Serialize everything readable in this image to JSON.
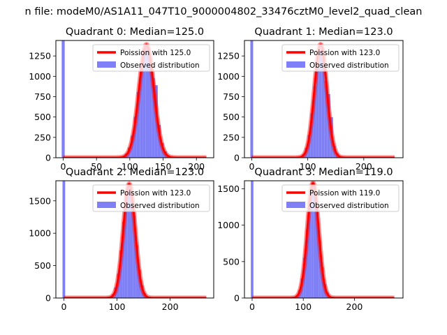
{
  "figure": {
    "suptitle": "n file: modeM0/AS1A11_047T10_9000004802_33476cztM0_level2_quad_clean"
  },
  "colors": {
    "hist": "#7f7ff7",
    "poisson": "#ff0000",
    "axis": "#000000"
  },
  "chart_data": [
    {
      "type": "bar",
      "title": "Quadrant 0: Median=125.0",
      "median": 125.0,
      "xlim": [
        -11,
        226
      ],
      "ylim": [
        0,
        1440
      ],
      "xticks": [
        0,
        50,
        100,
        150,
        200
      ],
      "yticks": [
        0,
        250,
        500,
        750,
        1000,
        1250
      ],
      "zero_bin": {
        "x": 0,
        "width": 4.5,
        "value": 1440
      },
      "hist_range": [
        70,
        160
      ],
      "bin_width": 4.5,
      "curve_range": [
        0,
        215
      ],
      "poisson_mean": 125.0,
      "poisson_peak": 1390,
      "hist_peak": 1390,
      "bumps": [
        {
          "x": 140,
          "extra": 260
        }
      ],
      "legend": {
        "line": "Poission with 125.0",
        "patch": "Observed distribution",
        "position": "upper right"
      }
    },
    {
      "type": "bar",
      "title": "Quadrant 1: Median=123.0",
      "median": 123.0,
      "xlim": [
        -13,
        270
      ],
      "ylim": [
        0,
        1440
      ],
      "xticks": [
        0,
        100,
        200
      ],
      "yticks": [
        0,
        250,
        500,
        750,
        1000,
        1250
      ],
      "zero_bin": {
        "x": 0,
        "width": 5,
        "value": 1440
      },
      "hist_range": [
        40,
        170
      ],
      "bin_width": 5,
      "curve_range": [
        0,
        255
      ],
      "poisson_mean": 123.0,
      "poisson_peak": 1390,
      "hist_peak": 1320,
      "bumps": [
        {
          "x": 140,
          "extra": 330
        }
      ],
      "legend": {
        "line": "Poission with 123.0",
        "patch": "Observed distribution",
        "position": "upper right"
      }
    },
    {
      "type": "bar",
      "title": "Quadrant 2: Median=123.0",
      "median": 123.0,
      "xlim": [
        -15,
        282
      ],
      "ylim": [
        0,
        1810
      ],
      "xticks": [
        0,
        100,
        200
      ],
      "yticks": [
        0,
        500,
        1000,
        1500
      ],
      "zero_bin": {
        "x": 0,
        "width": 5,
        "value": 1810
      },
      "hist_range": [
        90,
        160
      ],
      "bin_width": 5,
      "curve_range": [
        0,
        268
      ],
      "poisson_mean": 123.0,
      "poisson_peak": 1760,
      "hist_peak": 1770,
      "bumps": [],
      "legend": {
        "line": "Poission with 123.0",
        "patch": "Observed distribution",
        "position": "upper right"
      }
    },
    {
      "type": "bar",
      "title": "Quadrant 3: Median=119.0",
      "median": 119.0,
      "xlim": [
        -15,
        295
      ],
      "ylim": [
        0,
        1610
      ],
      "xticks": [
        0,
        100,
        200
      ],
      "yticks": [
        0,
        500,
        1000,
        1500
      ],
      "zero_bin": {
        "x": 0,
        "width": 5,
        "value": 1610
      },
      "hist_range": [
        70,
        160
      ],
      "bin_width": 5,
      "curve_range": [
        0,
        278
      ],
      "poisson_mean": 119.0,
      "poisson_peak": 1580,
      "hist_peak": 1560,
      "bumps": [],
      "legend": {
        "line": "Poission with 119.0",
        "patch": "Observed distribution",
        "position": "upper right"
      }
    }
  ]
}
